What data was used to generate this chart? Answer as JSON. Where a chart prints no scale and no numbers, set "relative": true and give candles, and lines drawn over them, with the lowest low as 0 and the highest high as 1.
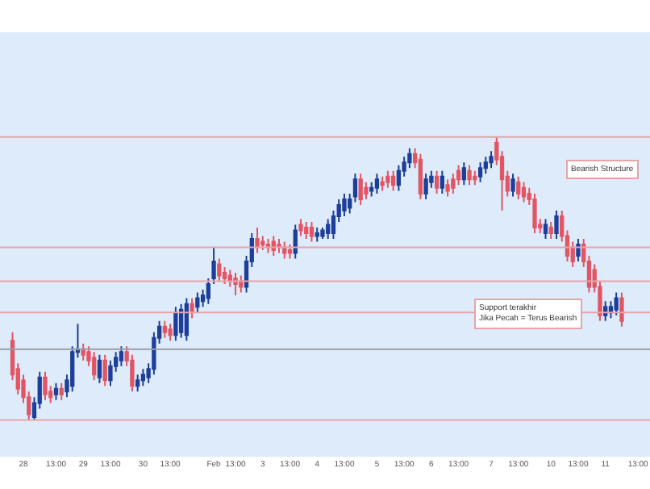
{
  "chart_data": {
    "type": "candlestick",
    "relative": true,
    "grid": false,
    "legend": false,
    "categories": [
      null,
      null,
      "28",
      null,
      null,
      null,
      null,
      null,
      "13:00",
      null,
      null,
      null,
      null,
      "29",
      null,
      null,
      null,
      null,
      "13:00",
      null,
      null,
      null,
      null,
      null,
      "30",
      null,
      null,
      null,
      null,
      "13:00",
      null,
      null,
      null,
      null,
      null,
      null,
      null,
      "Feb",
      null,
      null,
      null,
      "13:00",
      null,
      null,
      null,
      null,
      "3",
      null,
      null,
      null,
      null,
      "13:00",
      null,
      null,
      null,
      null,
      "4",
      null,
      null,
      null,
      null,
      "13:00",
      null,
      null,
      null,
      null,
      null,
      "5",
      null,
      null,
      null,
      null,
      "13:00",
      null,
      null,
      null,
      null,
      "6",
      null,
      null,
      null,
      null,
      "13:00",
      null,
      null,
      null,
      null,
      null,
      "7",
      null,
      null,
      null,
      null,
      "13:00",
      null,
      null,
      null,
      null,
      null,
      "10",
      null,
      null,
      null,
      null,
      "13:00",
      null,
      null,
      null,
      null,
      "11",
      null,
      null,
      null,
      null,
      null,
      "13:00"
    ],
    "ohlc": [
      [
        0.28,
        0.31,
        0.14,
        0.16
      ],
      [
        0.18,
        0.2,
        0.09,
        0.11
      ],
      [
        0.14,
        0.16,
        0.06,
        0.08
      ],
      [
        0.08,
        0.1,
        0,
        0.02
      ],
      [
        0.01,
        0.08,
        0,
        0.06
      ],
      [
        0.06,
        0.17,
        0.04,
        0.15
      ],
      [
        0.15,
        0.17,
        0.07,
        0.09
      ],
      [
        0.1,
        0.12,
        0.06,
        0.08
      ],
      [
        0.09,
        0.13,
        0.07,
        0.11
      ],
      [
        0.11,
        0.13,
        0.07,
        0.09
      ],
      [
        0.1,
        0.16,
        0.08,
        0.14
      ],
      [
        0.12,
        0.26,
        0.1,
        0.24
      ],
      [
        0.24,
        0.34,
        0.22,
        0.25
      ],
      [
        0.25,
        0.27,
        0.21,
        0.23
      ],
      [
        0.24,
        0.26,
        0.19,
        0.21
      ],
      [
        0.22,
        0.24,
        0.14,
        0.16
      ],
      [
        0.15,
        0.23,
        0.13,
        0.21
      ],
      [
        0.21,
        0.23,
        0.12,
        0.14
      ],
      [
        0.14,
        0.21,
        0.12,
        0.19
      ],
      [
        0.19,
        0.24,
        0.17,
        0.22
      ],
      [
        0.21,
        0.26,
        0.19,
        0.24
      ],
      [
        0.24,
        0.26,
        0.19,
        0.21
      ],
      [
        0.21,
        0.23,
        0.1,
        0.12
      ],
      [
        0.12,
        0.16,
        0.1,
        0.14
      ],
      [
        0.14,
        0.18,
        0.12,
        0.16
      ],
      [
        0.15,
        0.2,
        0.13,
        0.18
      ],
      [
        0.18,
        0.31,
        0.16,
        0.29
      ],
      [
        0.29,
        0.35,
        0.27,
        0.33
      ],
      [
        0.33,
        0.35,
        0.29,
        0.31
      ],
      [
        0.32,
        0.34,
        0.28,
        0.3
      ],
      [
        0.3,
        0.4,
        0.28,
        0.38
      ],
      [
        0.31,
        0.41,
        0.29,
        0.39
      ],
      [
        0.3,
        0.43,
        0.28,
        0.41
      ],
      [
        0.41,
        0.43,
        0.36,
        0.38
      ],
      [
        0.4,
        0.45,
        0.38,
        0.43
      ],
      [
        0.42,
        0.46,
        0.4,
        0.44
      ],
      [
        0.43,
        0.5,
        0.41,
        0.48
      ],
      [
        0.5,
        0.61,
        0.48,
        0.56
      ],
      [
        0.55,
        0.57,
        0.49,
        0.51
      ],
      [
        0.52,
        0.54,
        0.48,
        0.5
      ],
      [
        0.51,
        0.53,
        0.47,
        0.49
      ],
      [
        0.5,
        0.52,
        0.44,
        0.48
      ],
      [
        0.49,
        0.51,
        0.45,
        0.47
      ],
      [
        0.47,
        0.58,
        0.45,
        0.56
      ],
      [
        0.56,
        0.66,
        0.54,
        0.64
      ],
      [
        0.64,
        0.68,
        0.59,
        0.61
      ],
      [
        0.63,
        0.65,
        0.6,
        0.62
      ],
      [
        0.62,
        0.64,
        0.59,
        0.61
      ],
      [
        0.63,
        0.65,
        0.58,
        0.6
      ],
      [
        0.62,
        0.64,
        0.59,
        0.61
      ],
      [
        0.61,
        0.63,
        0.57,
        0.59
      ],
      [
        0.6,
        0.62,
        0.57,
        0.59
      ],
      [
        0.59,
        0.69,
        0.57,
        0.67
      ],
      [
        0.69,
        0.71,
        0.65,
        0.67
      ],
      [
        0.68,
        0.7,
        0.64,
        0.66
      ],
      [
        0.68,
        0.7,
        0.63,
        0.65
      ],
      [
        0.65,
        0.68,
        0.63,
        0.66
      ],
      [
        0.65,
        0.68,
        0.64,
        0.67
      ],
      [
        0.66,
        0.71,
        0.64,
        0.69
      ],
      [
        0.66,
        0.74,
        0.64,
        0.72
      ],
      [
        0.72,
        0.78,
        0.7,
        0.76
      ],
      [
        0.74,
        0.8,
        0.72,
        0.78
      ],
      [
        0.75,
        0.8,
        0.73,
        0.78
      ],
      [
        0.79,
        0.87,
        0.77,
        0.85
      ],
      [
        0.85,
        0.87,
        0.76,
        0.78
      ],
      [
        0.82,
        0.84,
        0.78,
        0.8
      ],
      [
        0.81,
        0.84,
        0.79,
        0.82
      ],
      [
        0.82,
        0.87,
        0.8,
        0.85
      ],
      [
        0.84,
        0.86,
        0.81,
        0.83
      ],
      [
        0.86,
        0.88,
        0.82,
        0.84
      ],
      [
        0.86,
        0.88,
        0.81,
        0.83
      ],
      [
        0.83,
        0.9,
        0.81,
        0.88
      ],
      [
        0.88,
        0.93,
        0.86,
        0.91
      ],
      [
        0.91,
        0.96,
        0.89,
        0.94
      ],
      [
        0.94,
        0.96,
        0.89,
        0.91
      ],
      [
        0.92,
        0.94,
        0.78,
        0.8
      ],
      [
        0.8,
        0.87,
        0.78,
        0.85
      ],
      [
        0.84,
        0.88,
        0.82,
        0.86
      ],
      [
        0.86,
        0.88,
        0.8,
        0.82
      ],
      [
        0.82,
        0.88,
        0.8,
        0.86
      ],
      [
        0.83,
        0.85,
        0.79,
        0.81
      ],
      [
        0.85,
        0.87,
        0.8,
        0.82
      ],
      [
        0.88,
        0.9,
        0.83,
        0.85
      ],
      [
        0.85,
        0.91,
        0.83,
        0.89
      ],
      [
        0.88,
        0.9,
        0.83,
        0.85
      ],
      [
        0.86,
        0.88,
        0.83,
        0.85
      ],
      [
        0.86,
        0.91,
        0.84,
        0.89
      ],
      [
        0.89,
        0.93,
        0.87,
        0.91
      ],
      [
        0.91,
        0.95,
        0.89,
        0.93
      ],
      [
        0.98,
        1,
        0.9,
        0.92
      ],
      [
        0.93,
        0.95,
        0.74,
        0.85
      ],
      [
        0.86,
        0.88,
        0.79,
        0.81
      ],
      [
        0.81,
        0.87,
        0.79,
        0.85
      ],
      [
        0.84,
        0.86,
        0.78,
        0.8
      ],
      [
        0.82,
        0.84,
        0.77,
        0.79
      ],
      [
        0.8,
        0.82,
        0.76,
        0.78
      ],
      [
        0.78,
        0.8,
        0.66,
        0.68
      ],
      [
        0.69,
        0.71,
        0.66,
        0.68
      ],
      [
        0.66,
        0.71,
        0.64,
        0.69
      ],
      [
        0.68,
        0.7,
        0.64,
        0.66
      ],
      [
        0.66,
        0.74,
        0.64,
        0.72
      ],
      [
        0.72,
        0.74,
        0.63,
        0.65
      ],
      [
        0.65,
        0.67,
        0.56,
        0.58
      ],
      [
        0.61,
        0.63,
        0.54,
        0.56
      ],
      [
        0.58,
        0.64,
        0.56,
        0.62
      ],
      [
        0.62,
        0.64,
        0.54,
        0.56
      ],
      [
        0.56,
        0.58,
        0.45,
        0.47
      ],
      [
        0.53,
        0.55,
        0.45,
        0.47
      ],
      [
        0.47,
        0.49,
        0.35,
        0.37
      ],
      [
        0.37,
        0.42,
        0.35,
        0.4
      ],
      [
        0.38,
        0.42,
        0.36,
        0.4
      ],
      [
        0.39,
        0.45,
        0.37,
        0.43
      ],
      [
        0.43,
        0.45,
        0.33,
        0.35
      ],
      null,
      null,
      null
    ],
    "ref_lines": [
      {
        "axis": "y",
        "value": 1,
        "color": "#e8a3a8"
      },
      {
        "axis": "y",
        "value": 0.61,
        "color": "#e8a3a8"
      },
      {
        "axis": "y",
        "value": 0.49,
        "color": "#e8a3a8"
      },
      {
        "axis": "y",
        "value": 0.38,
        "color": "#e8a3a8"
      },
      {
        "axis": "y",
        "value": 0.25,
        "color": "#9a9ea6"
      },
      {
        "axis": "y",
        "value": 0,
        "color": "#e8a3a8"
      }
    ],
    "annotations": [
      "Bearish Structure",
      "Support terakhir\nJika Pecah = Terus Bearish"
    ]
  }
}
